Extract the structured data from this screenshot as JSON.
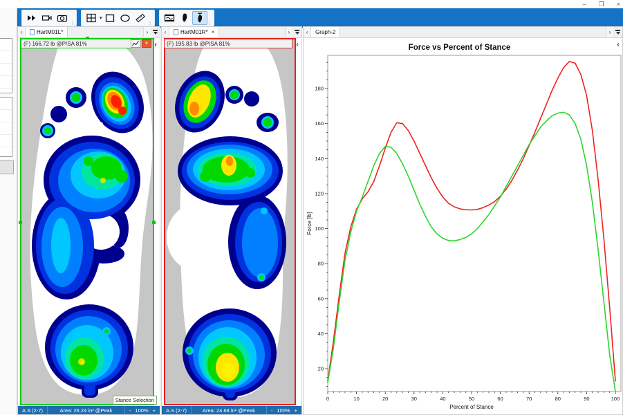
{
  "window": {
    "controls": {
      "minimize": "–",
      "maximize": "❐",
      "close": "×"
    }
  },
  "icons": {
    "tab_prev": "‹",
    "tab_next": "›",
    "collapse": "‹",
    "close_tab": "×",
    "close_header": "×",
    "toolbar": [
      "playback-icon",
      "video-camera-icon",
      "camera-icon",
      "window-layout-icon",
      "layout-dropdown-icon",
      "rectangle-tool-icon",
      "ellipse-tool-icon",
      "ruler-tool-icon",
      "movie-strip-icon",
      "foot-icon",
      "foot-force-icon"
    ],
    "toolbar_selected": "foot-force-icon"
  },
  "panes": {
    "left_foot": {
      "tab": "HartM01L*",
      "header": "(F) 166.72 lb @P/SA 81%",
      "accent": "#00cc00",
      "tooltip": "Stance Selection",
      "status": {
        "mode": "A.S (2-7)",
        "area": "Area: 26.24 in² @Peak",
        "zoom_out": "-",
        "zoom_level": "100%",
        "zoom_in": "+"
      }
    },
    "right_foot": {
      "tab": "HartM01R*",
      "header": "(F) 195.83 lb @P/SA 81%",
      "accent": "#e32222",
      "status": {
        "mode": "A.S (2-7)",
        "area": "Area: 24.68 in² @Peak",
        "zoom_out": "-",
        "zoom_level": "100%",
        "zoom_in": "+"
      }
    },
    "graph": {
      "tab": "Graph-2"
    }
  },
  "heatmap_scale": [
    "#000090",
    "#0032e0",
    "#0080ff",
    "#00c8ff",
    "#00e6a0",
    "#00d800",
    "#c8e800",
    "#ffe600",
    "#ff8c00",
    "#ff1e00"
  ],
  "chart_data": {
    "type": "line",
    "title": "Force vs Percent of Stance",
    "xlabel": "Percent of Stance",
    "ylabel": "Force [lb]",
    "xlim": [
      0,
      100
    ],
    "ylim": [
      7,
      199
    ],
    "x_major_tick": 10,
    "x_minor_tick": 2,
    "y_major_tick": 20,
    "y_minor_tick": 5,
    "grid": false,
    "legend": "none",
    "x": [
      0,
      2,
      4,
      6,
      8,
      10,
      12,
      14,
      16,
      18,
      20,
      22,
      24,
      26,
      28,
      30,
      32,
      34,
      36,
      38,
      40,
      42,
      44,
      46,
      48,
      50,
      52,
      54,
      56,
      58,
      60,
      62,
      64,
      66,
      68,
      70,
      72,
      74,
      76,
      78,
      80,
      82,
      84,
      86,
      88,
      90,
      92,
      94,
      96,
      98,
      100
    ],
    "series": [
      {
        "name": "right-foot-HartM01R",
        "color": "#ee2222",
        "peak_label": "195.83 lb @ 81%",
        "y": [
          13,
          36,
          62,
          86,
          101,
          111,
          117,
          121,
          127,
          136,
          146,
          155,
          160.5,
          160,
          156,
          150,
          143,
          136,
          129,
          123,
          118,
          114.5,
          112.5,
          111.3,
          110.8,
          110.7,
          111,
          112,
          113.5,
          115.5,
          118.5,
          122.5,
          127.5,
          133.5,
          140,
          147.5,
          155,
          163,
          171,
          179,
          186,
          192,
          195.5,
          194.5,
          188,
          176,
          156,
          128,
          94,
          55,
          13
        ]
      },
      {
        "name": "left-foot-HartM01L",
        "color": "#2fd42f",
        "peak_label": "166.72 lb @ 81%",
        "y": [
          12,
          32,
          58,
          82,
          98,
          110,
          118,
          127,
          136,
          143,
          147,
          146.5,
          143,
          137,
          130,
          122,
          114,
          107,
          101,
          97,
          94.5,
          93.2,
          93,
          93.8,
          95,
          97,
          100,
          104,
          108,
          113,
          118,
          124,
          130,
          136,
          142,
          148,
          153,
          158,
          161.5,
          164.5,
          166,
          166.5,
          165,
          160,
          151,
          136,
          115,
          88,
          58,
          28,
          7
        ]
      }
    ]
  }
}
